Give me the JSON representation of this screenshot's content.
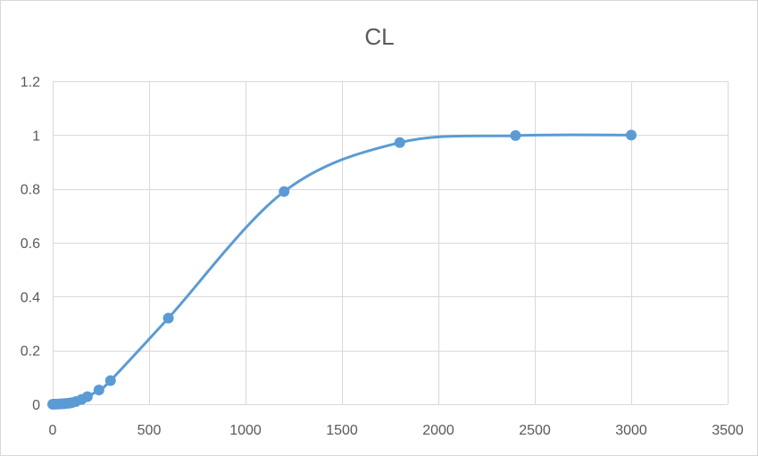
{
  "chart_data": {
    "type": "scatter",
    "title": "CL",
    "xlabel": "",
    "ylabel": "",
    "xlim": [
      0,
      3500
    ],
    "ylim": [
      0,
      1.2
    ],
    "x_ticks": [
      0,
      500,
      1000,
      1500,
      2000,
      2500,
      3000,
      3500
    ],
    "y_ticks": [
      0,
      0.2,
      0.4,
      0.6,
      0.8,
      1,
      1.2
    ],
    "x_tick_labels": [
      "0",
      "500",
      "1000",
      "1500",
      "2000",
      "2500",
      "3000",
      "3500"
    ],
    "y_tick_labels": [
      "0",
      "0.2",
      "0.4",
      "0.6",
      "0.8",
      "1",
      "1.2"
    ],
    "grid": true,
    "legend": "none",
    "smooth_line": true,
    "series": [
      {
        "color": "#5b9bd5",
        "x": [
          0,
          10,
          20,
          30,
          40,
          50,
          60,
          70,
          80,
          90,
          100,
          120,
          150,
          180,
          240,
          300,
          600,
          1200,
          1800,
          2400,
          3000
        ],
        "y": [
          0,
          0.0003,
          0.0006,
          0.0009,
          0.0013,
          0.0017,
          0.002,
          0.0027,
          0.0035,
          0.0045,
          0.006,
          0.01,
          0.018,
          0.028,
          0.053,
          0.088,
          0.32,
          0.79,
          0.972,
          0.998,
          1.0
        ]
      }
    ]
  }
}
